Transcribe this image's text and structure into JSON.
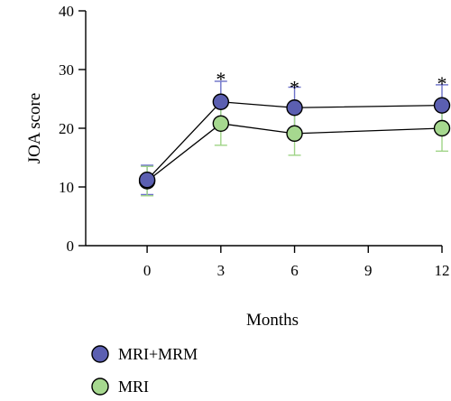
{
  "chart_data": {
    "type": "line",
    "xlabel": "Months",
    "ylabel": "JOA score",
    "x": [
      0,
      3,
      6,
      12
    ],
    "xlim": [
      -2.5,
      12
    ],
    "ylim": [
      0,
      40
    ],
    "xticks": [
      0,
      3,
      6,
      9,
      12
    ],
    "yticks": [
      0,
      10,
      20,
      30,
      40
    ],
    "legend_position": "bottom-left",
    "grid": false,
    "series": [
      {
        "name": "MRI+MRM",
        "values": [
          11.2,
          24.5,
          23.5,
          23.9
        ],
        "errors": [
          2.5,
          3.5,
          3.5,
          3.5
        ],
        "fill_color": "#5b5fb1",
        "error_color": "#6b70c8"
      },
      {
        "name": "MRI",
        "values": [
          11.0,
          20.8,
          19.1,
          20.0
        ],
        "errors": [
          2.5,
          3.7,
          3.7,
          3.9
        ],
        "fill_color": "#a6d88f",
        "error_color": "#9fd487"
      }
    ],
    "annotations": [
      {
        "x": 3,
        "y": 28.5,
        "text": "*"
      },
      {
        "x": 6,
        "y": 27,
        "text": "*"
      },
      {
        "x": 12,
        "y": 27.7,
        "text": "*"
      }
    ]
  }
}
